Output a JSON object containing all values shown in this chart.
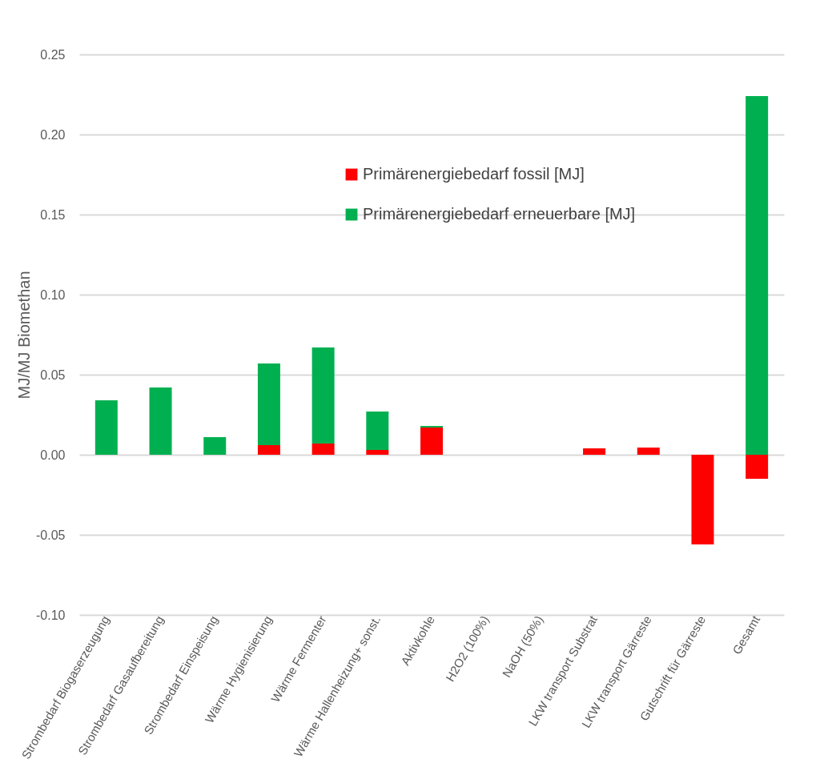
{
  "chart_data": {
    "type": "bar",
    "stacked": true,
    "ylabel": "MJ/MJ Biomethan",
    "categories": [
      "Strombedarf Biogaserzeugung",
      "Strombedarf Gasaufbereitung",
      "Strombedarf Einspeisung",
      "Wärme Hygienisierung",
      "Wärme Fermenter",
      "Wärme Hallenheizung+ sonst.",
      "Aktivkohle",
      "H2O2 (100%)",
      "NaOH (50%)",
      "LKW transport Substrat",
      "LKW transport Gärreste",
      "Gutschrift für Gärreste",
      "Gesamt"
    ],
    "series": [
      {
        "name": "Primärenergiebedarf fossil  [MJ]",
        "color": "#ff0000",
        "values": [
          0,
          0,
          0,
          0.006,
          0.007,
          0.003,
          0.017,
          0,
          0,
          0.004,
          0.0045,
          -0.056,
          -0.015
        ]
      },
      {
        "name": "Primärenergiebedarf erneuerbare  [MJ]",
        "color": "#00b050",
        "values": [
          0.034,
          0.042,
          0.011,
          0.051,
          0.06,
          0.024,
          0.001,
          0,
          0,
          0,
          0,
          0,
          0.224
        ]
      }
    ],
    "ylim": [
      -0.1,
      0.25
    ],
    "yticks": [
      {
        "value": -0.1,
        "label": "-0.10"
      },
      {
        "value": -0.05,
        "label": "-0.05"
      },
      {
        "value": 0,
        "label": "0.00"
      },
      {
        "value": 0.05,
        "label": "0.05"
      },
      {
        "value": 0.1,
        "label": "0.10"
      },
      {
        "value": 0.15,
        "label": "0.15"
      },
      {
        "value": 0.2,
        "label": "0.20"
      },
      {
        "value": 0.25,
        "label": "0.25"
      }
    ],
    "grid": "y",
    "legend": "top"
  }
}
